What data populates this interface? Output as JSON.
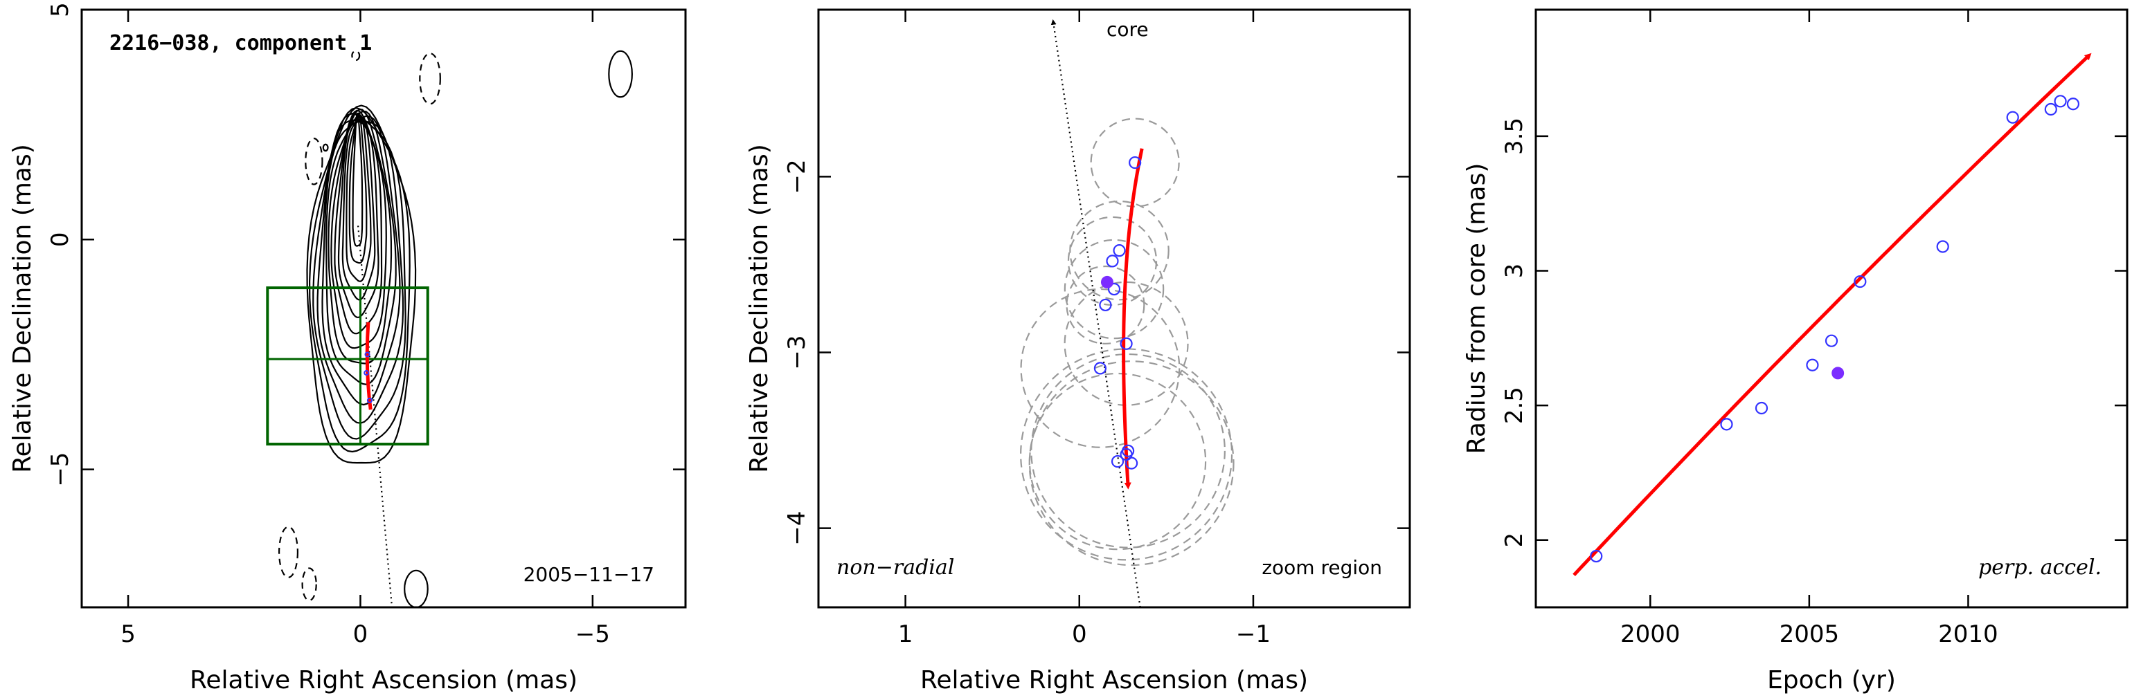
{
  "chart_data": [
    {
      "type": "contour",
      "title": "2216−038, component 1",
      "date": "2005−11−17",
      "xlabel": "Relative Right Ascension (mas)",
      "ylabel": "Relative Declination (mas)",
      "xlim": [
        6,
        -7
      ],
      "ylim": [
        -8,
        5
      ],
      "xticks": [
        5,
        0,
        -5
      ],
      "yticks": [
        -5,
        0,
        5
      ],
      "xtick_labels": [
        "5",
        "0",
        "−5"
      ],
      "ytick_labels": [
        "−5",
        "0",
        "5"
      ],
      "zoom_box": {
        "x": [
          2.0,
          -1.45
        ],
        "y": [
          -4.45,
          -1.05
        ]
      },
      "path_xy": [
        [
          -0.17,
          -1.8
        ],
        [
          -0.13,
          -2.4
        ],
        [
          -0.13,
          -3.0
        ],
        [
          -0.22,
          -3.7
        ]
      ],
      "colors": {
        "path": "#ff0000",
        "box": "#006400",
        "points": "#3333ff"
      }
    },
    {
      "type": "scatter",
      "xlabel": "Relative Right Ascension (mas)",
      "ylabel": "Relative Declination (mas)",
      "xlim": [
        1.5,
        -1.9
      ],
      "ylim": [
        -4.45,
        -1.05
      ],
      "xticks": [
        1,
        0,
        -1
      ],
      "yticks": [
        -4,
        -3,
        -2
      ],
      "xtick_labels": [
        "1",
        "0",
        "−1"
      ],
      "ytick_labels": [
        "−4",
        "−3",
        "−2"
      ],
      "annotation_core": "core",
      "annotation_left": "non−radial",
      "annotation_right": "zoom region",
      "points": [
        {
          "x": -0.32,
          "y": -1.92,
          "r": 0.25
        },
        {
          "x": -0.23,
          "y": -2.42,
          "r": 0.28
        },
        {
          "x": -0.19,
          "y": -2.48,
          "r": 0.25
        },
        {
          "x": -0.2,
          "y": -2.64,
          "r": 0.28
        },
        {
          "x": -0.15,
          "y": -2.73,
          "r": 0.22
        },
        {
          "x": -0.27,
          "y": -2.95,
          "r": 0.35
        },
        {
          "x": -0.12,
          "y": -3.09,
          "r": 0.45
        },
        {
          "x": -0.28,
          "y": -3.56,
          "r": 0.55
        },
        {
          "x": -0.27,
          "y": -3.58,
          "r": 0.6
        },
        {
          "x": -0.22,
          "y": -3.62,
          "r": 0.5
        },
        {
          "x": -0.3,
          "y": -3.63,
          "r": 0.58
        }
      ],
      "filled_point": {
        "x": -0.16,
        "y": -2.6
      },
      "path_xy": [
        [
          -0.36,
          -1.84
        ],
        [
          -0.25,
          -2.35
        ],
        [
          -0.23,
          -2.95
        ],
        [
          -0.28,
          -3.76
        ]
      ],
      "colors": {
        "path": "#ff0000",
        "points": "#3333ff",
        "filled": "#7b2cff",
        "circles": "#9a9a9a"
      }
    },
    {
      "type": "scatter",
      "xlabel": "Epoch (yr)",
      "ylabel": "Radius from core (mas)",
      "xlim": [
        1996.4,
        2015.0
      ],
      "ylim": [
        1.75,
        3.97
      ],
      "xticks": [
        2000,
        2005,
        2010
      ],
      "yticks": [
        2,
        2.5,
        3,
        3.5
      ],
      "xtick_labels": [
        "2000",
        "2005",
        "2010"
      ],
      "ytick_labels": [
        "2",
        "2.5",
        "3",
        "3.5"
      ],
      "annotation": "perp. accel.",
      "x": [
        1998.3,
        2002.4,
        2003.5,
        2005.1,
        2005.7,
        2006.6,
        2009.2,
        2011.4,
        2012.6,
        2012.9,
        2013.3
      ],
      "y": [
        1.94,
        2.43,
        2.49,
        2.65,
        2.74,
        2.96,
        3.09,
        3.57,
        3.6,
        3.63,
        3.62
      ],
      "filled_point": {
        "x": 2005.9,
        "y": 2.62
      },
      "fit_curve": {
        "x0": 1997.6,
        "y0": 1.87,
        "x1": 2013.8,
        "y1": 3.8
      },
      "colors": {
        "fit": "#ff0000",
        "points": "#3333ff",
        "filled": "#7b2cff"
      }
    }
  ]
}
